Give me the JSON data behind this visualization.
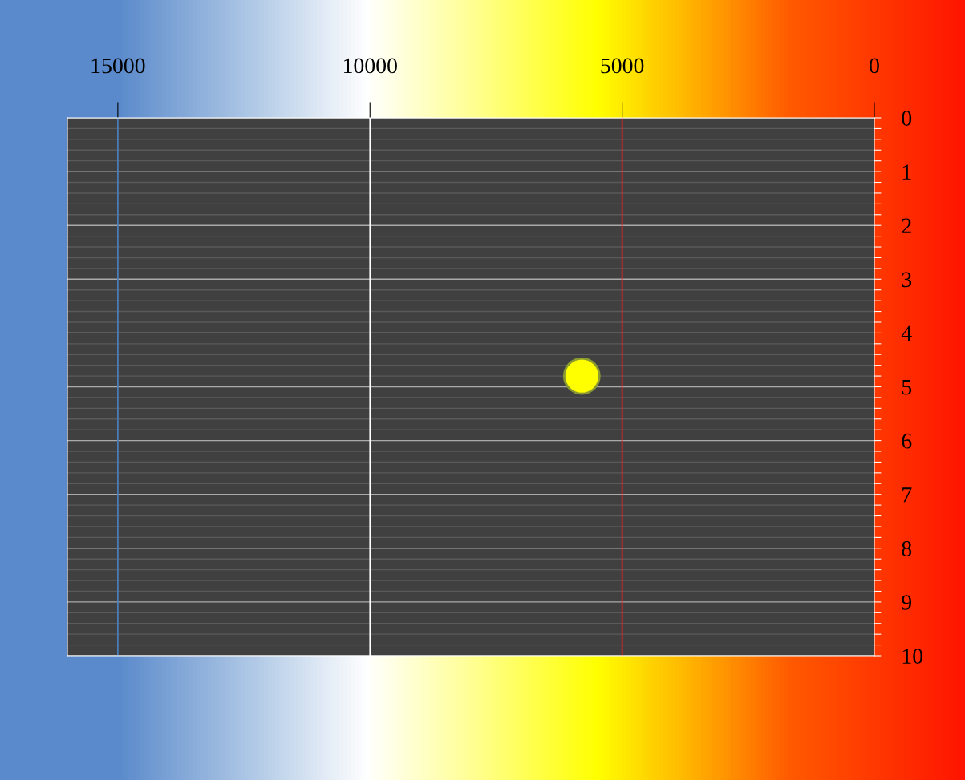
{
  "chart_data": {
    "type": "scatter",
    "x": [
      5800
    ],
    "values": [
      4.8
    ],
    "color": "#ffff00",
    "marker": "circle",
    "xlim": [
      16000,
      0
    ],
    "xticks": [
      15000,
      10000,
      5000,
      0
    ],
    "ylim": [
      10,
      0
    ],
    "yticks": [
      0,
      {
        "value": 0.2,
        "label": null
      },
      {
        "value": 0.4,
        "label": null
      },
      {
        "value": 0.6,
        "label": null
      },
      {
        "value": 0.8,
        "label": null
      },
      1,
      {
        "value": 1.2,
        "label": null
      },
      {
        "value": 1.4,
        "label": null
      },
      {
        "value": 1.6,
        "label": null
      },
      {
        "value": 1.8,
        "label": null
      },
      2,
      {
        "value": 2.2,
        "label": null
      },
      {
        "value": 2.4,
        "label": null
      },
      {
        "value": 2.6,
        "label": null
      },
      {
        "value": 2.8,
        "label": null
      },
      3,
      {
        "value": 3.2,
        "label": null
      },
      {
        "value": 3.4,
        "label": null
      },
      {
        "value": 3.6,
        "label": null
      },
      {
        "value": 3.8,
        "label": null
      },
      4,
      {
        "value": 4.2,
        "label": null
      },
      {
        "value": 4.4,
        "label": null
      },
      {
        "value": 4.6,
        "label": null
      },
      {
        "value": 4.8,
        "label": null
      },
      5,
      {
        "value": 5.2,
        "label": null
      },
      {
        "value": 5.4,
        "label": null
      },
      {
        "value": 5.6,
        "label": null
      },
      {
        "value": 5.8,
        "label": null
      },
      6,
      {
        "value": 6.2,
        "label": null
      },
      {
        "value": 6.4,
        "label": null
      },
      {
        "value": 6.6,
        "label": null
      },
      {
        "value": 6.8,
        "label": null
      },
      7,
      {
        "value": 7.2,
        "label": null
      },
      {
        "value": 7.4,
        "label": null
      },
      {
        "value": 7.6,
        "label": null
      },
      {
        "value": 7.8,
        "label": null
      },
      8,
      {
        "value": 8.2,
        "label": null
      },
      {
        "value": 8.4,
        "label": null
      },
      {
        "value": 8.6,
        "label": null
      },
      {
        "value": 8.8,
        "label": null
      },
      9,
      {
        "value": 9.2,
        "label": null
      },
      {
        "value": 9.4,
        "label": null
      },
      {
        "value": 9.6,
        "label": null
      },
      {
        "value": 9.8,
        "label": null
      },
      10
    ],
    "ref_lines": [
      {
        "axis": "x",
        "value": 15000,
        "color": "#4a7fc0"
      },
      {
        "axis": "x",
        "value": 10000,
        "color": "#ffffff"
      },
      {
        "axis": "x",
        "value": 5000,
        "color": "#ff2020"
      }
    ],
    "grid": "y"
  }
}
